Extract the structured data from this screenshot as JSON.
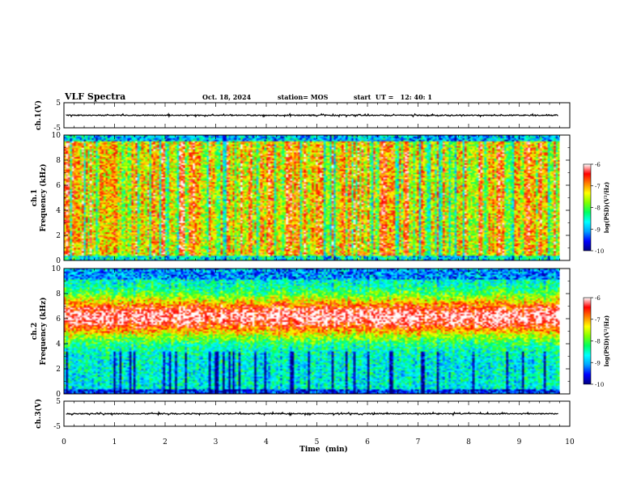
{
  "header": {
    "title": "VLF Spectra",
    "date": "Oct. 18, 2024",
    "station": "station= MOS",
    "start_ut": "start  UT =   12: 40: 1"
  },
  "chart_data": [
    {
      "type": "line",
      "name": "ch1-waveform",
      "ylabel": "ch.1(V)",
      "ylim": [
        -5,
        5
      ],
      "yticks": [
        "5",
        "-5"
      ],
      "xlim": [
        0,
        10
      ],
      "baseline": 0
    },
    {
      "type": "heatmap",
      "name": "ch1-spectrogram",
      "ylabel": "ch.1\nFrequency (kHz)",
      "ylim": [
        0,
        10
      ],
      "yticks": [
        "0",
        "2",
        "4",
        "6",
        "8",
        "10"
      ],
      "xlim": [
        0,
        9.8
      ],
      "colorbar": {
        "label": "log(PSD)(V²/Hz)",
        "range": [
          -10,
          -6
        ],
        "ticks": [
          "-6",
          "-7",
          "-8",
          "-9",
          "-10"
        ]
      },
      "pattern": "broadband vertical bursts across 0-10 kHz"
    },
    {
      "type": "heatmap",
      "name": "ch2-spectrogram",
      "ylabel": "ch.2\nFrequency (kHz)",
      "ylim": [
        0,
        10
      ],
      "yticks": [
        "0",
        "2",
        "4",
        "6",
        "8",
        "10"
      ],
      "xlim": [
        0,
        9.8
      ],
      "colorbar": {
        "label": "log(PSD)(V²/Hz)",
        "range": [
          -10,
          -6
        ],
        "ticks": [
          "-6",
          "-7",
          "-8",
          "-9",
          "-10"
        ]
      },
      "pattern": "persistent intense band centered near 6 kHz"
    },
    {
      "type": "line",
      "name": "ch3-waveform",
      "ylabel": "ch.3(V)",
      "ylim": [
        -5,
        5
      ],
      "yticks": [
        "5",
        "-5"
      ],
      "xlim": [
        0,
        10
      ],
      "baseline": 0
    }
  ],
  "xaxis": {
    "label": "Time  (min)",
    "ticks": [
      "0",
      "1",
      "2",
      "3",
      "4",
      "5",
      "6",
      "7",
      "8",
      "9",
      "10"
    ]
  },
  "colormap": [
    "#000080",
    "#0000ff",
    "#00a0ff",
    "#00ffff",
    "#00ff60",
    "#80ff00",
    "#ffff00",
    "#ff8000",
    "#ff0000",
    "#ffffff"
  ]
}
